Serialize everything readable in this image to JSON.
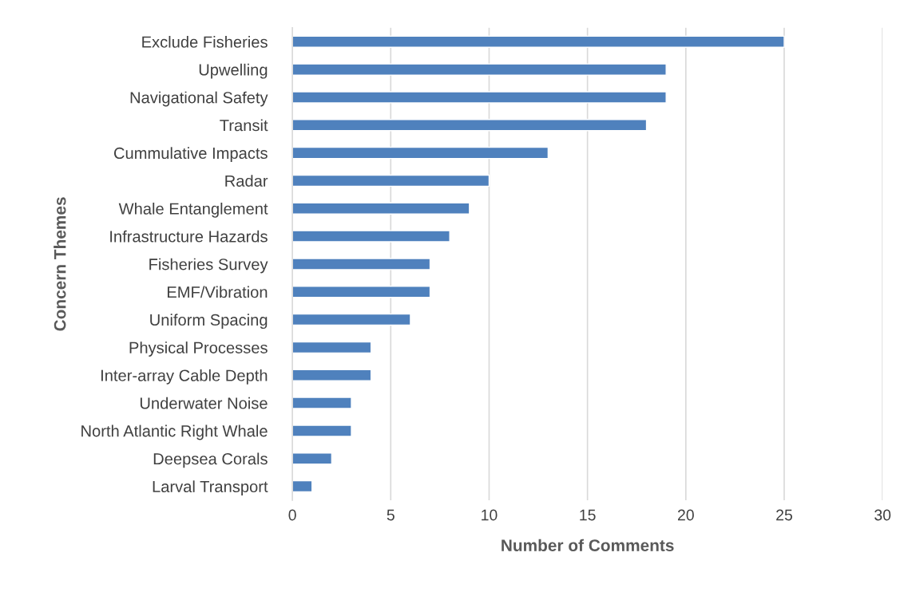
{
  "chart_data": {
    "type": "bar",
    "orientation": "horizontal",
    "xlabel": "Number of Comments",
    "ylabel": "Concern Themes",
    "categories": [
      "Exclude Fisheries",
      "Upwelling",
      "Navigational Safety",
      "Transit",
      "Cummulative Impacts",
      "Radar",
      "Whale Entanglement",
      "Infrastructure Hazards",
      "Fisheries Survey",
      "EMF/Vibration",
      "Uniform Spacing",
      "Physical Processes",
      "Inter-array Cable Depth",
      "Underwater Noise",
      "North Atlantic Right Whale",
      "Deepsea Corals",
      "Larval Transport"
    ],
    "values": [
      25,
      19,
      19,
      18,
      13,
      10,
      9,
      8,
      7,
      7,
      6,
      4,
      4,
      3,
      3,
      2,
      1
    ],
    "color": "#4f81bd",
    "xlim": [
      0,
      30
    ],
    "xticks": [
      0,
      5,
      10,
      15,
      20,
      25,
      30
    ],
    "grid": "x"
  }
}
